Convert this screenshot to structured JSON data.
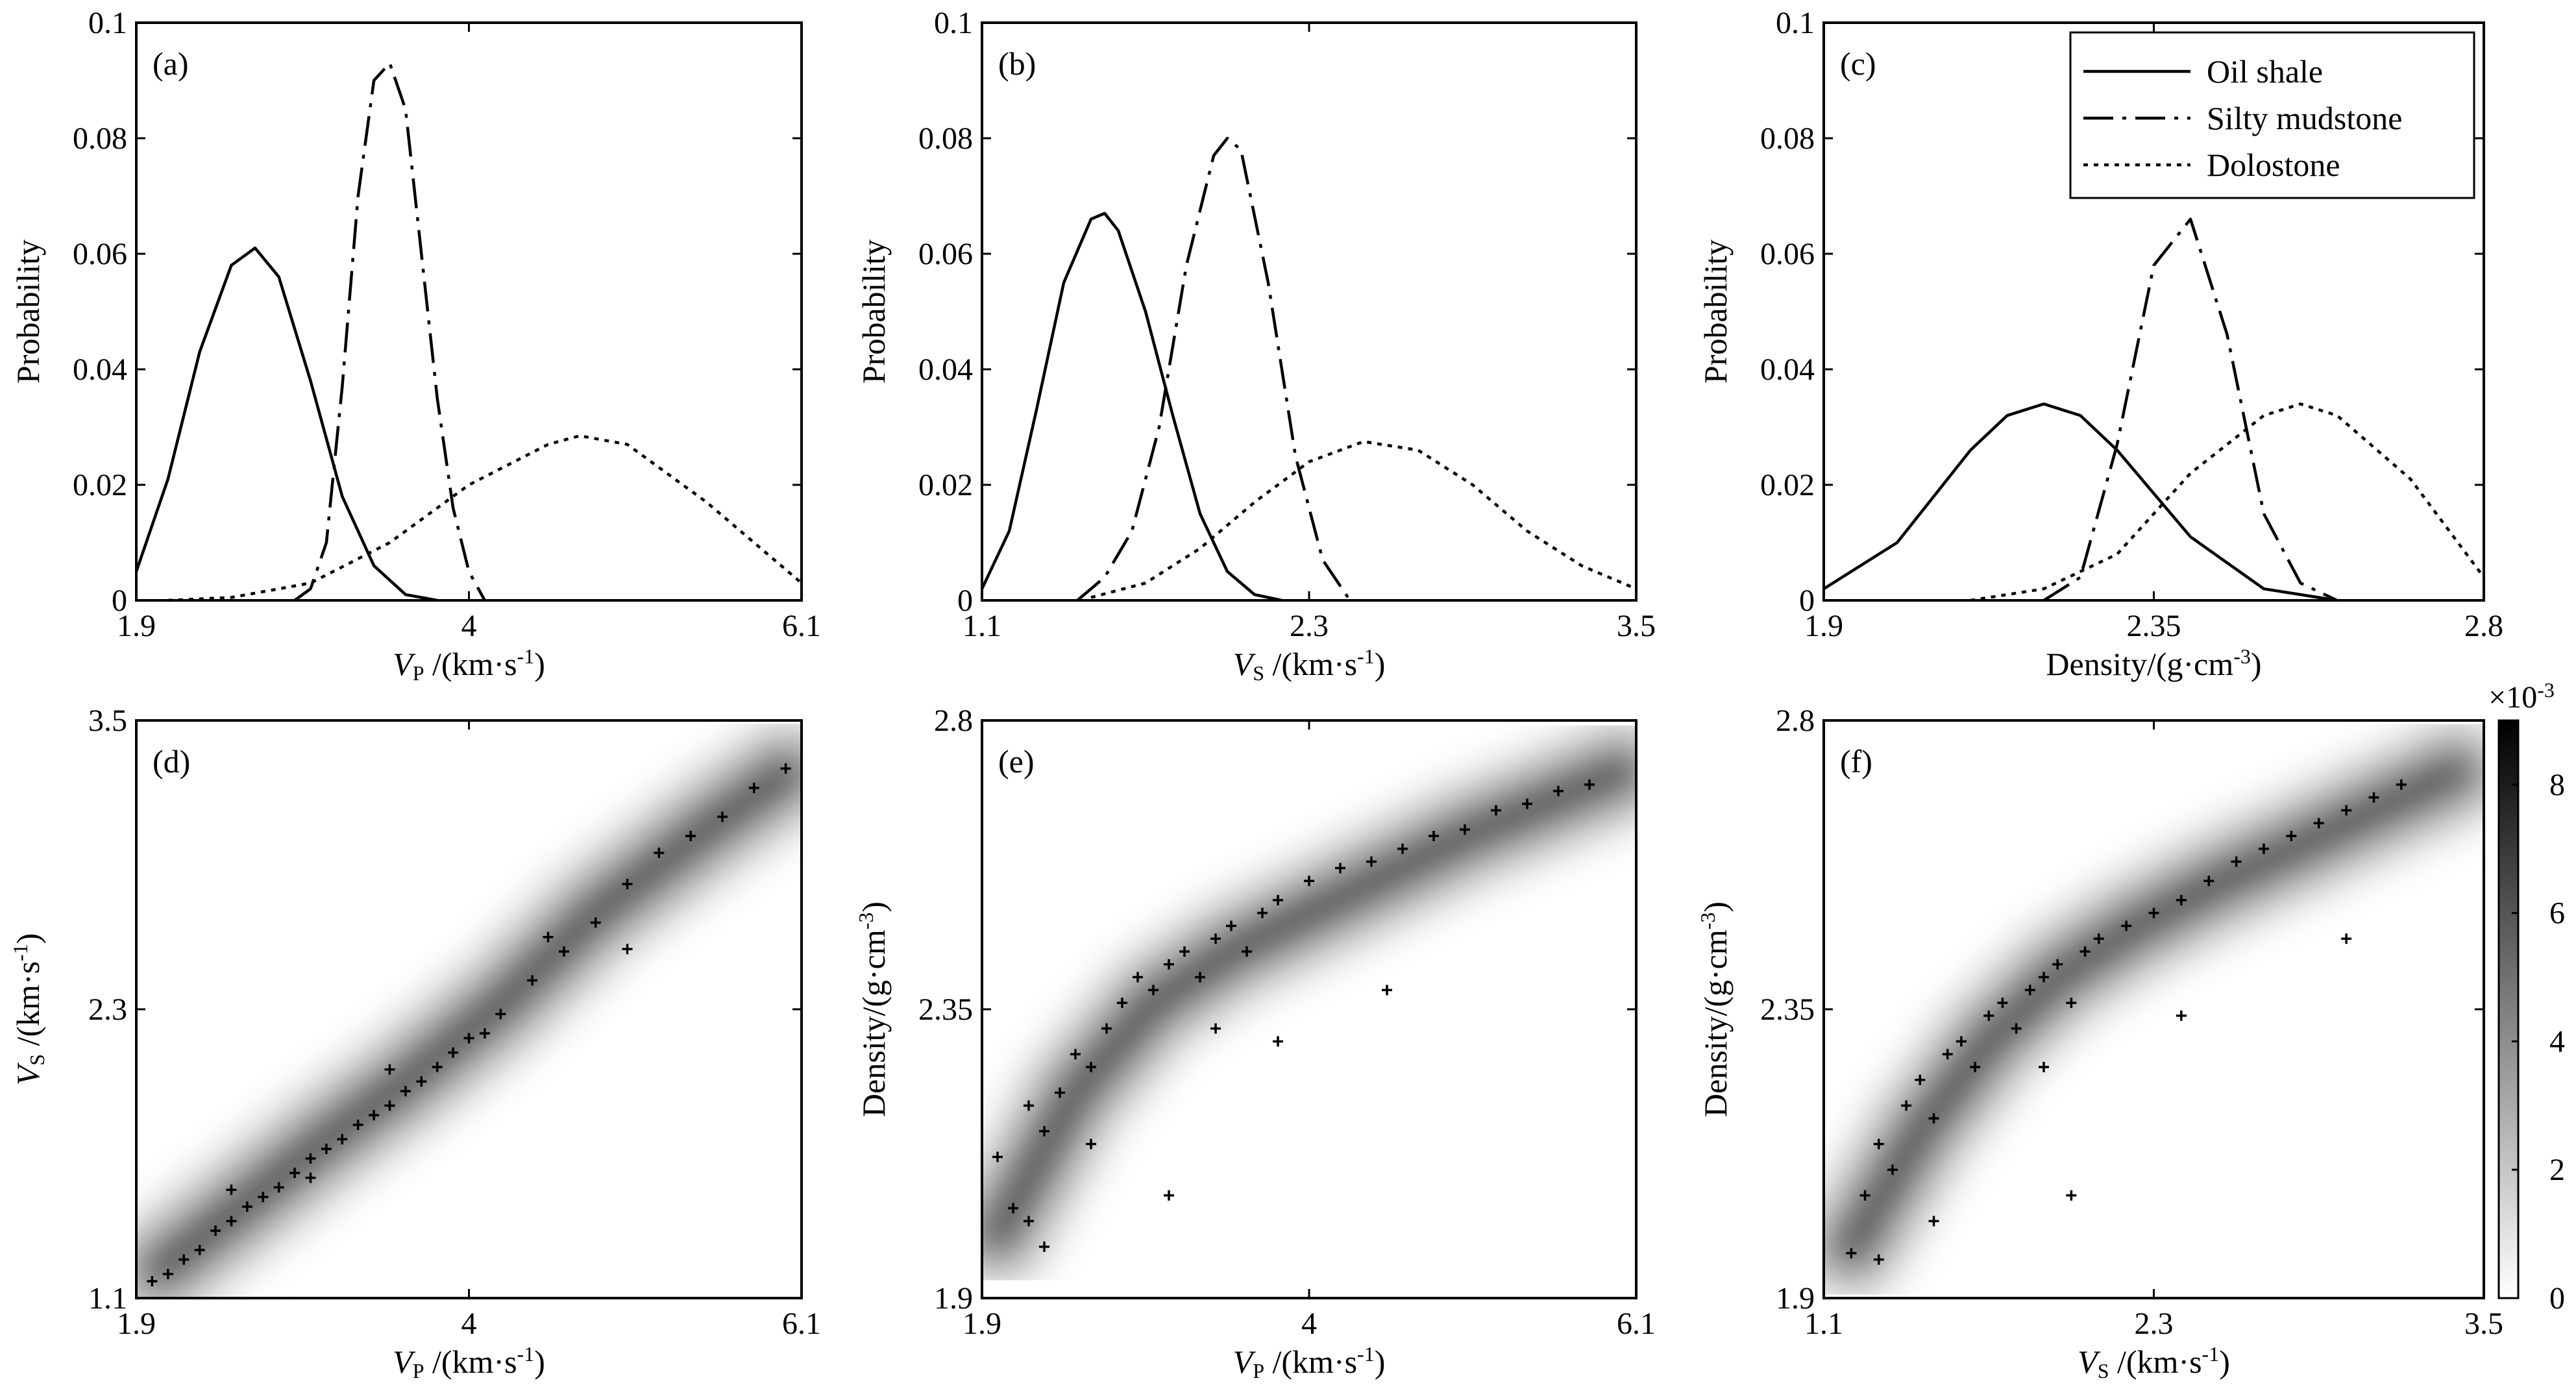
{
  "chart_data": [
    {
      "type": "line",
      "panel_label": "(a)",
      "xlabel": "VP/(km·s-1)",
      "ylabel": "Probability",
      "xlim": [
        1.9,
        6.1
      ],
      "ylim": [
        0,
        0.1
      ],
      "xticks": [
        "1.9",
        "4",
        "6.1"
      ],
      "yticks": [
        "0",
        "0.02",
        "0.04",
        "0.06",
        "0.08",
        "0.1"
      ],
      "series": [
        {
          "name": "Oil shale",
          "style": "solid",
          "x": [
            1.9,
            2.1,
            2.3,
            2.5,
            2.65,
            2.8,
            3.0,
            3.2,
            3.4,
            3.6,
            3.8
          ],
          "values": [
            0.005,
            0.021,
            0.043,
            0.058,
            0.061,
            0.056,
            0.038,
            0.018,
            0.006,
            0.001,
            0.0
          ]
        },
        {
          "name": "Silty mudstone",
          "style": "dashdot",
          "x": [
            2.9,
            3.0,
            3.1,
            3.2,
            3.3,
            3.4,
            3.5,
            3.6,
            3.7,
            3.8,
            3.9,
            4.0,
            4.1
          ],
          "values": [
            0.0,
            0.002,
            0.01,
            0.037,
            0.07,
            0.09,
            0.093,
            0.085,
            0.06,
            0.035,
            0.016,
            0.005,
            0.0
          ]
        },
        {
          "name": "Dolostone",
          "style": "dotted",
          "x": [
            2.1,
            2.5,
            3.0,
            3.5,
            4.0,
            4.5,
            4.7,
            5.0,
            5.5,
            6.1
          ],
          "values": [
            0.0,
            0.0005,
            0.003,
            0.01,
            0.02,
            0.027,
            0.0285,
            0.027,
            0.017,
            0.003
          ]
        }
      ]
    },
    {
      "type": "line",
      "panel_label": "(b)",
      "xlabel": "VS/(km·s-1)",
      "ylabel": "Probability",
      "xlim": [
        1.1,
        3.5
      ],
      "ylim": [
        0,
        0.1
      ],
      "xticks": [
        "1.1",
        "2.3",
        "3.5"
      ],
      "yticks": [
        "0",
        "0.02",
        "0.04",
        "0.06",
        "0.08",
        "0.1"
      ],
      "series": [
        {
          "name": "Oil shale",
          "style": "solid",
          "x": [
            1.1,
            1.2,
            1.3,
            1.4,
            1.5,
            1.55,
            1.6,
            1.7,
            1.8,
            1.9,
            2.0,
            2.1,
            2.2
          ],
          "values": [
            0.002,
            0.012,
            0.033,
            0.055,
            0.066,
            0.067,
            0.064,
            0.05,
            0.032,
            0.015,
            0.005,
            0.001,
            0.0
          ]
        },
        {
          "name": "Silty mudstone",
          "style": "dashdot",
          "x": [
            1.45,
            1.55,
            1.65,
            1.75,
            1.85,
            1.95,
            2.0,
            2.05,
            2.15,
            2.25,
            2.35,
            2.45
          ],
          "values": [
            0.0,
            0.004,
            0.012,
            0.03,
            0.058,
            0.077,
            0.08,
            0.078,
            0.055,
            0.025,
            0.007,
            0.0
          ]
        },
        {
          "name": "Dolostone",
          "style": "dotted",
          "x": [
            1.5,
            1.7,
            1.9,
            2.1,
            2.3,
            2.5,
            2.7,
            2.9,
            3.1,
            3.3,
            3.5
          ],
          "values": [
            0.0005,
            0.003,
            0.009,
            0.017,
            0.024,
            0.0275,
            0.026,
            0.02,
            0.012,
            0.006,
            0.002
          ]
        }
      ]
    },
    {
      "type": "line",
      "panel_label": "(c)",
      "xlabel": "Density/(g·cm-3)",
      "ylabel": "Probability",
      "xlim": [
        1.9,
        2.8
      ],
      "ylim": [
        0,
        0.1
      ],
      "xticks": [
        "1.9",
        "2.35",
        "2.8"
      ],
      "yticks": [
        "0",
        "0.02",
        "0.04",
        "0.06",
        "0.08",
        "0.1"
      ],
      "legend": {
        "position": "top-right",
        "entries": [
          "Oil shale",
          "Silty mudstone",
          "Dolostone"
        ]
      },
      "series": [
        {
          "name": "Oil shale",
          "style": "solid",
          "x": [
            1.9,
            2.0,
            2.1,
            2.15,
            2.2,
            2.25,
            2.3,
            2.4,
            2.5,
            2.6
          ],
          "values": [
            0.002,
            0.01,
            0.026,
            0.032,
            0.034,
            0.032,
            0.026,
            0.011,
            0.002,
            0.0
          ]
        },
        {
          "name": "Silty mudstone",
          "style": "dashdot",
          "x": [
            2.2,
            2.25,
            2.3,
            2.35,
            2.4,
            2.45,
            2.5,
            2.55,
            2.6
          ],
          "values": [
            0.0,
            0.004,
            0.027,
            0.058,
            0.066,
            0.046,
            0.015,
            0.003,
            0.0
          ]
        },
        {
          "name": "Dolostone",
          "style": "dotted",
          "x": [
            2.1,
            2.2,
            2.3,
            2.4,
            2.5,
            2.55,
            2.6,
            2.7,
            2.8
          ],
          "values": [
            0.0,
            0.002,
            0.008,
            0.022,
            0.032,
            0.034,
            0.032,
            0.021,
            0.004
          ]
        }
      ]
    },
    {
      "type": "heatmap",
      "panel_label": "(d)",
      "xlabel": "VP/(km·s-1)",
      "ylabel": "VS/(km·s-1)",
      "xlim": [
        1.9,
        6.1
      ],
      "ylim": [
        1.1,
        3.5
      ],
      "xticks": [
        "1.9",
        "4",
        "6.1"
      ],
      "yticks": [
        "1.1",
        "2.3",
        "3.5"
      ],
      "density_ridge": {
        "x": [
          2.05,
          2.6,
          3.1,
          3.6,
          4.2,
          4.8,
          5.5,
          6.0
        ],
        "y": [
          1.22,
          1.5,
          1.76,
          2.0,
          2.32,
          2.7,
          3.05,
          3.28
        ]
      },
      "scatter": {
        "x": [
          2.0,
          2.1,
          2.2,
          2.3,
          2.4,
          2.5,
          2.6,
          2.7,
          2.8,
          2.9,
          3.0,
          3.1,
          3.2,
          3.3,
          3.4,
          3.5,
          3.6,
          3.7,
          3.8,
          3.9,
          4.0,
          4.1,
          4.2,
          4.4,
          4.6,
          4.8,
          5.0,
          5.2,
          5.4,
          5.6,
          5.8,
          6.0,
          2.5,
          3.0,
          3.5,
          4.5,
          5.0
        ],
        "y": [
          1.17,
          1.2,
          1.26,
          1.3,
          1.38,
          1.42,
          1.48,
          1.52,
          1.56,
          1.62,
          1.68,
          1.72,
          1.76,
          1.82,
          1.86,
          1.9,
          1.96,
          2.0,
          2.06,
          2.12,
          2.18,
          2.2,
          2.28,
          2.42,
          2.54,
          2.66,
          2.82,
          2.95,
          3.02,
          3.1,
          3.22,
          3.3,
          1.55,
          1.6,
          2.05,
          2.6,
          2.55
        ]
      }
    },
    {
      "type": "heatmap",
      "panel_label": "(e)",
      "xlabel": "VP/(km·s-1)",
      "ylabel": "Density/(g·cm-3)",
      "xlim": [
        1.9,
        6.1
      ],
      "ylim": [
        1.9,
        2.8
      ],
      "xticks": [
        "1.9",
        "4",
        "6.1"
      ],
      "yticks": [
        "1.9",
        "2.35",
        "2.8"
      ],
      "density_ridge": {
        "x": [
          2.0,
          2.5,
          3.0,
          3.5,
          4.0,
          4.5,
          5.0,
          5.5,
          6.0
        ],
        "y": [
          2.0,
          2.22,
          2.36,
          2.44,
          2.5,
          2.56,
          2.62,
          2.67,
          2.72
        ]
      },
      "scatter": {
        "x": [
          2.0,
          2.1,
          2.2,
          2.3,
          2.4,
          2.5,
          2.6,
          2.7,
          2.8,
          2.9,
          3.0,
          3.1,
          3.2,
          3.3,
          3.4,
          3.5,
          3.6,
          3.7,
          3.8,
          4.0,
          4.2,
          4.4,
          4.6,
          4.8,
          5.0,
          5.2,
          5.4,
          5.6,
          5.8,
          2.3,
          2.6,
          3.4,
          3.8,
          4.5,
          3.1,
          2.2
        ],
        "y": [
          2.12,
          2.04,
          2.2,
          2.16,
          2.22,
          2.28,
          2.26,
          2.32,
          2.36,
          2.4,
          2.38,
          2.42,
          2.44,
          2.4,
          2.46,
          2.48,
          2.44,
          2.5,
          2.52,
          2.55,
          2.57,
          2.58,
          2.6,
          2.62,
          2.63,
          2.66,
          2.67,
          2.69,
          2.7,
          1.98,
          2.14,
          2.32,
          2.3,
          2.38,
          2.06,
          2.02
        ]
      }
    },
    {
      "type": "heatmap",
      "panel_label": "(f)",
      "xlabel": "VS/(km·s-1)",
      "ylabel": "Density/(g·cm-3)",
      "xlim": [
        1.1,
        3.5
      ],
      "ylim": [
        1.9,
        2.8
      ],
      "xticks": [
        "1.1",
        "2.3",
        "3.5"
      ],
      "yticks": [
        "1.9",
        "2.35",
        "2.8"
      ],
      "density_ridge": {
        "x": [
          1.2,
          1.45,
          1.7,
          1.95,
          2.2,
          2.5,
          2.8,
          3.1,
          3.4
        ],
        "y": [
          1.98,
          2.16,
          2.3,
          2.4,
          2.47,
          2.54,
          2.6,
          2.66,
          2.72
        ]
      },
      "scatter": {
        "x": [
          1.2,
          1.25,
          1.3,
          1.35,
          1.4,
          1.45,
          1.5,
          1.55,
          1.6,
          1.65,
          1.7,
          1.75,
          1.8,
          1.85,
          1.9,
          1.95,
          2.0,
          2.05,
          2.1,
          2.2,
          2.3,
          2.4,
          2.5,
          2.6,
          2.7,
          2.8,
          2.9,
          3.0,
          3.1,
          3.2,
          1.3,
          1.5,
          2.0,
          2.4,
          3.0,
          1.9
        ],
        "y": [
          1.97,
          2.06,
          2.14,
          2.1,
          2.2,
          2.24,
          2.18,
          2.28,
          2.3,
          2.26,
          2.34,
          2.36,
          2.32,
          2.38,
          2.4,
          2.42,
          2.36,
          2.44,
          2.46,
          2.48,
          2.5,
          2.52,
          2.55,
          2.58,
          2.6,
          2.62,
          2.64,
          2.66,
          2.68,
          2.7,
          1.96,
          2.02,
          2.06,
          2.34,
          2.46,
          2.26
        ]
      }
    }
  ],
  "colorbar": {
    "multiplier": "×10-3",
    "range": [
      0,
      9
    ],
    "ticks": [
      "0",
      "2",
      "4",
      "6",
      "8"
    ]
  }
}
